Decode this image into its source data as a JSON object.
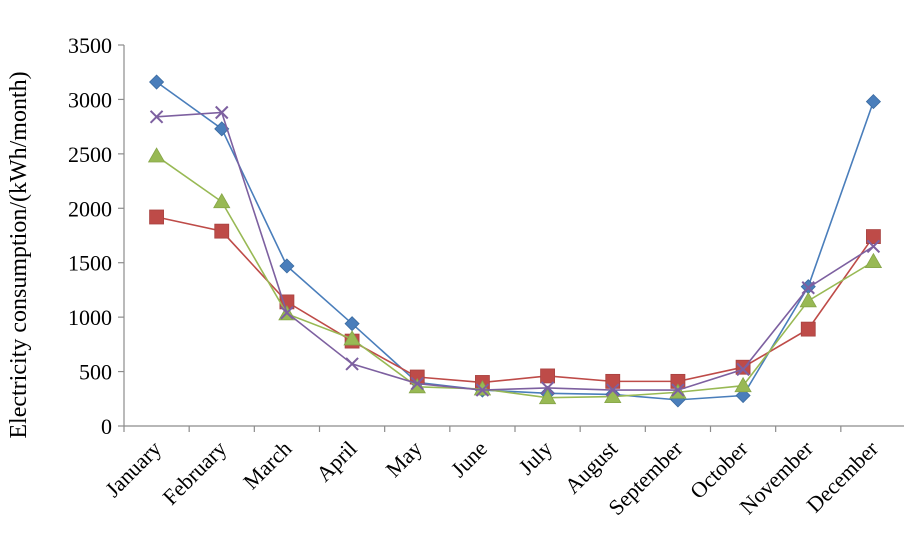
{
  "chart_data": {
    "type": "line",
    "title": "",
    "xlabel": "",
    "ylabel": "Electricity consumption/(kWh/month)",
    "ylim": [
      0,
      3500
    ],
    "yticks": [
      0,
      500,
      1000,
      1500,
      2000,
      2500,
      3000,
      3500
    ],
    "grid": false,
    "legend": "none",
    "categories": [
      "January",
      "February",
      "March",
      "April",
      "May",
      "June",
      "July",
      "August",
      "September",
      "October",
      "November",
      "December"
    ],
    "series": [
      {
        "marker": "diamond",
        "color": "#4a7ebb",
        "values": [
          3160,
          2730,
          1470,
          940,
          400,
          330,
          300,
          290,
          240,
          280,
          1280,
          2980
        ]
      },
      {
        "marker": "square",
        "color": "#be4b48",
        "values": [
          1920,
          1790,
          1140,
          780,
          450,
          400,
          460,
          410,
          410,
          540,
          890,
          1740
        ]
      },
      {
        "marker": "triangle",
        "color": "#98b954",
        "values": [
          2480,
          2060,
          1030,
          800,
          360,
          340,
          260,
          270,
          310,
          370,
          1150,
          1510
        ]
      },
      {
        "marker": "x",
        "color": "#7d60a0",
        "values": [
          2840,
          2880,
          1040,
          570,
          390,
          330,
          350,
          330,
          330,
          520,
          1270,
          1650
        ]
      }
    ]
  }
}
